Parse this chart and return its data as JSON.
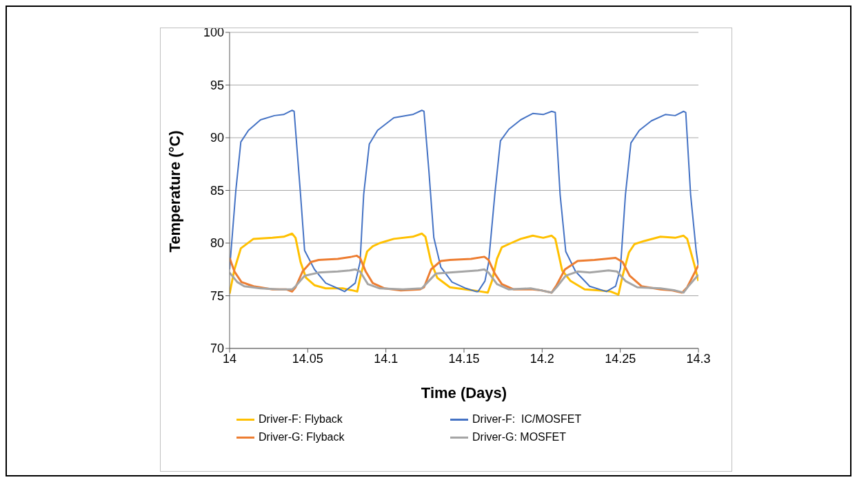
{
  "chart_data": {
    "type": "line",
    "xlabel": "Time (Days)",
    "ylabel": "Temperature (°C)",
    "xlim": [
      14,
      14.3
    ],
    "xticks": [
      14,
      14.05,
      14.1,
      14.15,
      14.2,
      14.25,
      14.3
    ],
    "ylim": [
      70,
      100
    ],
    "yticks": [
      70,
      75,
      80,
      85,
      90,
      95,
      100
    ],
    "grid": "y",
    "legend": "bottom",
    "series": [
      {
        "name": "Driver-F: Flyback",
        "color": "#ffc000",
        "x": [
          14,
          14.0031,
          14.0072,
          14.0153,
          14.0274,
          14.0346,
          14.04,
          14.0422,
          14.0454,
          14.0489,
          14.0543,
          14.0615,
          14.0723,
          14.079,
          14.0817,
          14.084,
          14.088,
          14.0916,
          14.0961,
          14.1051,
          14.1172,
          14.123,
          14.1253,
          14.1289,
          14.1329,
          14.141,
          14.1558,
          14.1608,
          14.1652,
          14.1679,
          14.1711,
          14.1742,
          14.1801,
          14.1863,
          14.194,
          14.2007,
          14.2061,
          14.2084,
          14.2128,
          14.2182,
          14.2272,
          14.2366,
          14.2438,
          14.2488,
          14.2515,
          14.2555,
          14.2591,
          14.2654,
          14.2757,
          14.2851,
          14.2905,
          14.2928,
          14.2973,
          14.3
        ],
        "values": [
          75.2,
          77.5,
          79.5,
          80.4,
          80.5,
          80.6,
          80.9,
          80.5,
          78.2,
          76.7,
          76.0,
          75.7,
          75.7,
          75.5,
          75.4,
          77.0,
          79.2,
          79.7,
          80.0,
          80.4,
          80.6,
          80.9,
          80.6,
          78.2,
          76.7,
          75.8,
          75.5,
          75.4,
          75.3,
          76.4,
          78.5,
          79.6,
          80.0,
          80.4,
          80.7,
          80.5,
          80.7,
          80.4,
          77.4,
          76.4,
          75.6,
          75.5,
          75.4,
          75.1,
          76.9,
          79.1,
          79.9,
          80.2,
          80.6,
          80.5,
          80.7,
          80.4,
          78.0,
          76.4
        ]
      },
      {
        "name": "Driver-F:  IC/MOSFET",
        "color": "#4472c4",
        "x": [
          14,
          14.004,
          14.0072,
          14.0121,
          14.0198,
          14.0287,
          14.0346,
          14.04,
          14.0413,
          14.0454,
          14.048,
          14.0543,
          14.0615,
          14.0692,
          14.0736,
          14.0804,
          14.0835,
          14.0858,
          14.0894,
          14.0947,
          14.1051,
          14.1172,
          14.123,
          14.1244,
          14.1275,
          14.1307,
          14.1352,
          14.1423,
          14.1513,
          14.1576,
          14.159,
          14.1634,
          14.1657,
          14.1697,
          14.1733,
          14.1787,
          14.1863,
          14.194,
          14.2007,
          14.2061,
          14.2084,
          14.2115,
          14.2151,
          14.2214,
          14.2304,
          14.2411,
          14.247,
          14.2501,
          14.2533,
          14.2568,
          14.2622,
          14.2699,
          14.2788,
          14.2851,
          14.2905,
          14.2919,
          14.295,
          14.2986,
          14.3
        ],
        "values": [
          77.5,
          85.0,
          89.6,
          90.7,
          91.7,
          92.1,
          92.2,
          92.6,
          92.5,
          84.6,
          79.3,
          77.5,
          76.2,
          75.7,
          75.4,
          76.2,
          78.2,
          84.6,
          89.4,
          90.7,
          91.9,
          92.2,
          92.6,
          92.5,
          86.9,
          80.5,
          77.7,
          76.3,
          75.7,
          75.4,
          75.4,
          76.4,
          78.1,
          84.6,
          89.7,
          90.8,
          91.7,
          92.3,
          92.2,
          92.5,
          92.4,
          84.6,
          79.2,
          77.3,
          75.9,
          75.4,
          75.9,
          77.6,
          84.6,
          89.5,
          90.7,
          91.6,
          92.2,
          92.1,
          92.5,
          92.4,
          84.6,
          79.2,
          77.8
        ]
      },
      {
        "name": "Driver-G: Flyback",
        "color": "#ed7d31",
        "x": [
          14,
          14.0031,
          14.0076,
          14.0153,
          14.0274,
          14.0364,
          14.04,
          14.0422,
          14.0467,
          14.0521,
          14.057,
          14.0692,
          14.0781,
          14.0813,
          14.0835,
          14.0871,
          14.0916,
          14.0992,
          14.1096,
          14.1217,
          14.1244,
          14.1289,
          14.1352,
          14.141,
          14.1545,
          14.163,
          14.1657,
          14.1697,
          14.1742,
          14.1819,
          14.194,
          14.1998,
          14.2061,
          14.2092,
          14.2146,
          14.2227,
          14.2335,
          14.247,
          14.2515,
          14.256,
          14.2636,
          14.2757,
          14.2833,
          14.2896,
          14.2928,
          14.3
        ],
        "values": [
          78.6,
          77.3,
          76.3,
          75.9,
          75.6,
          75.6,
          75.4,
          75.8,
          77.3,
          78.2,
          78.4,
          78.5,
          78.7,
          78.8,
          78.6,
          77.3,
          76.2,
          75.7,
          75.5,
          75.6,
          75.8,
          77.5,
          78.3,
          78.4,
          78.5,
          78.7,
          78.4,
          77.1,
          76.1,
          75.6,
          75.6,
          75.5,
          75.3,
          76.0,
          77.5,
          78.3,
          78.4,
          78.6,
          78.2,
          76.9,
          75.9,
          75.6,
          75.5,
          75.3,
          75.8,
          77.9
        ]
      },
      {
        "name": "Driver-G: MOSFET",
        "color": "#a5a5a5",
        "x": [
          14,
          14.0049,
          14.0094,
          14.0198,
          14.0319,
          14.04,
          14.0422,
          14.048,
          14.057,
          14.0692,
          14.0768,
          14.0804,
          14.0835,
          14.0885,
          14.0961,
          14.1109,
          14.123,
          14.1262,
          14.132,
          14.141,
          14.159,
          14.163,
          14.1657,
          14.1711,
          14.1787,
          14.1926,
          14.1998,
          14.2061,
          14.2092,
          14.2151,
          14.2227,
          14.2304,
          14.2425,
          14.2479,
          14.2533,
          14.2609,
          14.2757,
          14.2851,
          14.2905,
          14.2941,
          14.3
        ],
        "values": [
          77.2,
          76.3,
          75.9,
          75.7,
          75.6,
          75.6,
          75.9,
          76.9,
          77.2,
          77.3,
          77.4,
          77.5,
          77.3,
          76.1,
          75.7,
          75.6,
          75.7,
          76.2,
          77.1,
          77.2,
          77.4,
          77.5,
          77.2,
          76.1,
          75.6,
          75.7,
          75.5,
          75.3,
          75.8,
          76.9,
          77.3,
          77.2,
          77.4,
          77.3,
          76.4,
          75.8,
          75.7,
          75.5,
          75.3,
          76.0,
          77.0
        ]
      }
    ]
  }
}
